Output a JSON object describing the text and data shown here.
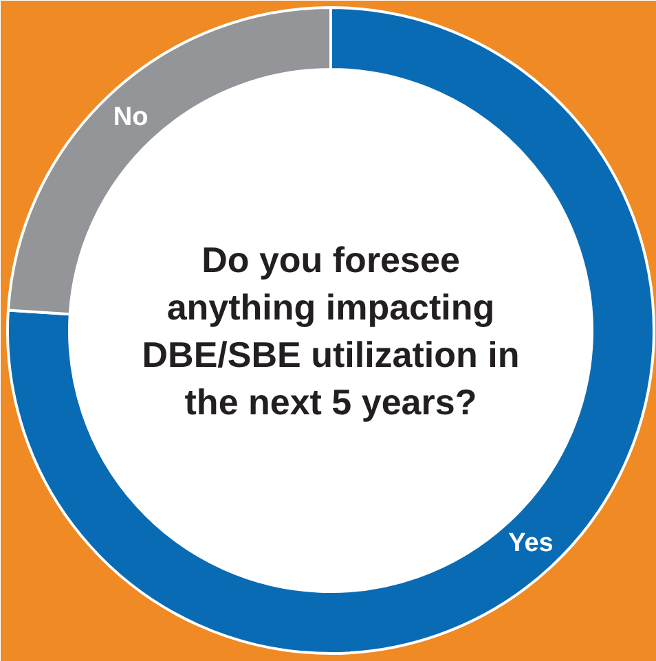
{
  "chart_data": {
    "type": "donut",
    "title": "Do you foresee\nanything impacting\nDBE/SBE utilization in\nthe next 5 years?",
    "categories": [
      "Yes",
      "No"
    ],
    "values": [
      76,
      24
    ],
    "colors": [
      "#0a6bb5",
      "#939598"
    ],
    "legend": false
  }
}
